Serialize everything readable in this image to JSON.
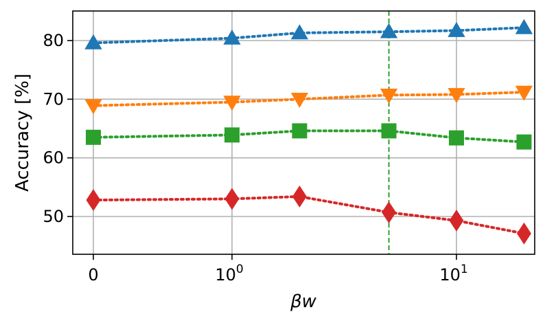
{
  "chart_data": {
    "type": "line",
    "title": "",
    "xlabel": "βw",
    "ylabel": "Accuracy [%]",
    "x": [
      0,
      1,
      2,
      5,
      10,
      20
    ],
    "x_ticks": [
      {
        "value": 0,
        "label": "0",
        "sup": ""
      },
      {
        "value": 1,
        "label": "10",
        "sup": "0"
      },
      {
        "value": 10,
        "label": "10",
        "sup": "1"
      }
    ],
    "x_scale": "symlog",
    "y_ticks": [
      50,
      60,
      70,
      80
    ],
    "ylim": [
      43.5,
      85
    ],
    "grid": true,
    "legend": "none",
    "reference_line": {
      "x": 5,
      "color": "#2ca02c",
      "style": "dashed"
    },
    "series": [
      {
        "color": "#1f77b4",
        "marker": "triangle-up",
        "values": [
          79.6,
          80.4,
          81.3,
          81.5,
          81.7,
          82.2
        ]
      },
      {
        "color": "#ff7f0e",
        "marker": "triangle-down",
        "values": [
          68.9,
          69.5,
          70.0,
          70.7,
          70.8,
          71.2
        ]
      },
      {
        "color": "#2ca02c",
        "marker": "square",
        "values": [
          63.5,
          63.9,
          64.6,
          64.6,
          63.4,
          62.7
        ]
      },
      {
        "color": "#d62728",
        "marker": "diamond",
        "values": [
          52.8,
          53.0,
          53.4,
          50.7,
          49.3,
          47.1
        ]
      }
    ]
  }
}
